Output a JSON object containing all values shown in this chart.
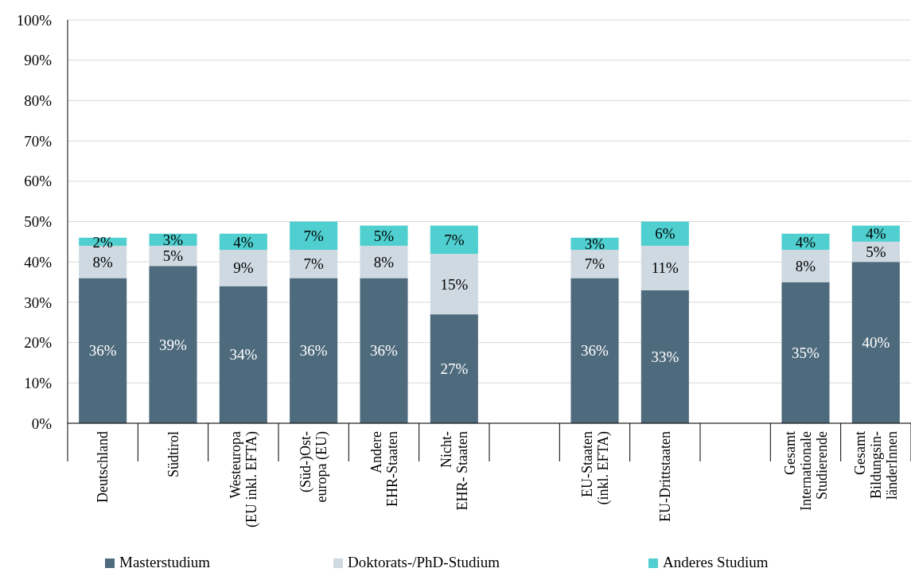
{
  "chart_data": {
    "type": "bar",
    "stacked": true,
    "categories": [
      "Deutschland",
      "Südtirol",
      "Westeuropa\n(EU inkl. EFTA)",
      "(Süd-)Ost-\neuropa (EU)",
      "Andere\nEHR-Staaten",
      "Nicht-\nEHR- Staaten",
      null,
      "EU-Staaten\n(inkl. EFTA)",
      "EU-Drittstaaten",
      null,
      "Gesamt\nInternationale\nStudierende",
      "Gesamt\nBildungsin-\nländerInnen"
    ],
    "series": [
      {
        "name": "Masterstudium",
        "color": "#4e6a7d",
        "values": [
          36,
          39,
          34,
          36,
          36,
          27,
          null,
          36,
          33,
          null,
          35,
          40
        ],
        "value_labels": [
          "36%",
          "39%",
          "34%",
          "36%",
          "36%",
          "27%",
          null,
          "36%",
          "33%",
          null,
          "35%",
          "40%"
        ]
      },
      {
        "name": "Doktorats-/PhD-Studium",
        "color": "#cfd9e1",
        "values": [
          8,
          5,
          9,
          7,
          8,
          15,
          null,
          7,
          11,
          null,
          8,
          5
        ],
        "value_labels": [
          "8%",
          "5%",
          "9%",
          "7%",
          "8%",
          "15%",
          null,
          "7%",
          "11%",
          null,
          "8%",
          "5%"
        ]
      },
      {
        "name": "Anderes Studium",
        "color": "#4fcfcf",
        "values": [
          2,
          3,
          4,
          7,
          5,
          7,
          null,
          3,
          6,
          null,
          4,
          4
        ],
        "value_labels": [
          "2%",
          "3%",
          "4%",
          "7%",
          "5%",
          "7%",
          null,
          "3%",
          "6%",
          null,
          "4%",
          "4%"
        ]
      }
    ],
    "ylim": [
      0,
      100
    ],
    "yticks": [
      {
        "value": 0,
        "label": "0%"
      },
      {
        "value": 10,
        "label": "10%"
      },
      {
        "value": 20,
        "label": "20%"
      },
      {
        "value": 30,
        "label": "30%"
      },
      {
        "value": 40,
        "label": "40%"
      },
      {
        "value": 50,
        "label": "50%"
      },
      {
        "value": 60,
        "label": "60%"
      },
      {
        "value": 70,
        "label": "70%"
      },
      {
        "value": 80,
        "label": "80%"
      },
      {
        "value": 90,
        "label": "90%"
      },
      {
        "value": 100,
        "label": "100%"
      }
    ],
    "grid": "y",
    "legend": "bottom"
  }
}
